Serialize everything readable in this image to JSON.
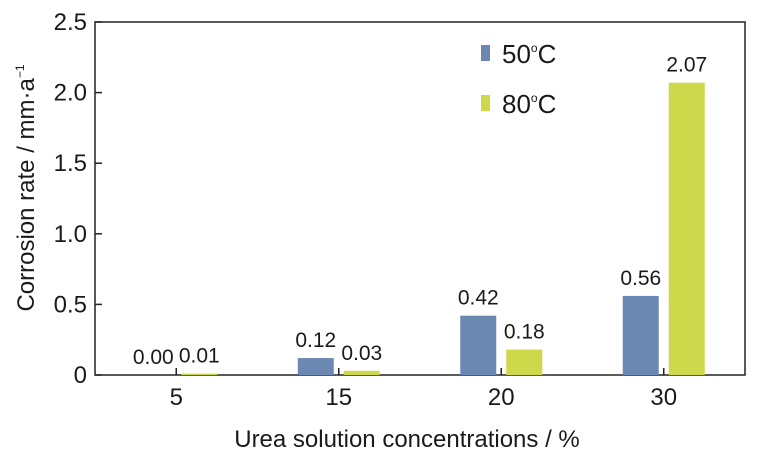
{
  "chart_data": {
    "type": "bar",
    "categories": [
      "5",
      "15",
      "20",
      "30"
    ],
    "series": [
      {
        "name": "50oC",
        "name_base": "50",
        "name_sup": "o",
        "name_tail": "C",
        "color": "#6b88b3",
        "values": [
          0.0,
          0.12,
          0.42,
          0.56
        ],
        "labels": [
          "0.00",
          "0.12",
          "0.42",
          "0.56"
        ]
      },
      {
        "name": "80oC",
        "name_base": "80",
        "name_sup": "o",
        "name_tail": "C",
        "color": "#cdd84a",
        "values": [
          0.01,
          0.03,
          0.18,
          2.07
        ],
        "labels": [
          "0.01",
          "0.03",
          "0.18",
          "2.07"
        ]
      }
    ],
    "xlabel": "Urea solution concentrations / %",
    "ylabel": "Corrosion rate / mm·a",
    "ylabel_sup": "−1",
    "ylim": [
      0,
      2.5
    ],
    "yticks": [
      "0",
      "0.5",
      "1.0",
      "1.5",
      "2.0",
      "2.5"
    ],
    "grid": false,
    "legend_position": "top-right"
  }
}
